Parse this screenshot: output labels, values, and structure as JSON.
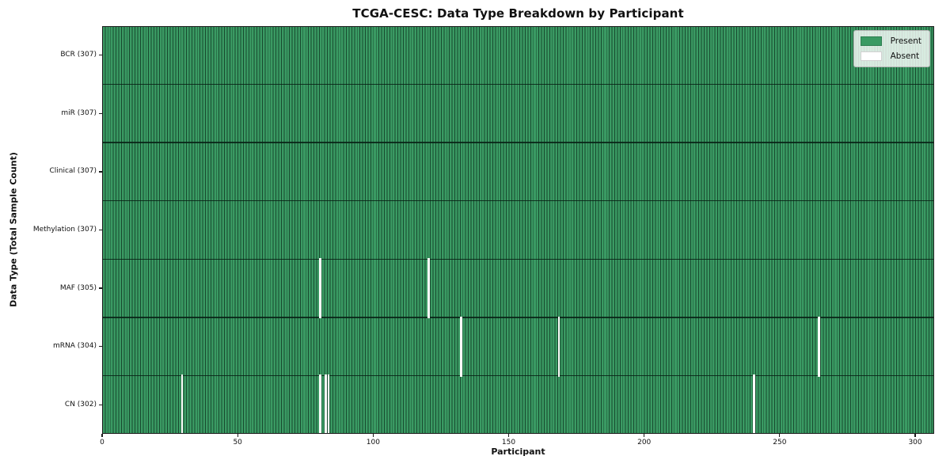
{
  "title": "TCGA-CESC: Data Type Breakdown by Participant",
  "x_axis": {
    "label": "Participant"
  },
  "y_axis": {
    "label": "Data Type (Total Sample Count)"
  },
  "colors": {
    "present": "#3a9a63",
    "absent": "#fdfdfb",
    "bar_edge": "rgba(10,42,26,0.72)",
    "row_separator": "rgba(8,32,20,0.85)",
    "spine": "#1c1c1c",
    "legend_bg": "rgba(255,255,255,0.8)",
    "legend_border": "#b5b5b5",
    "text": "#111111"
  },
  "chart_data": {
    "type": "heatmap",
    "title": "TCGA-CESC: Data Type Breakdown by Participant",
    "xlabel": "Participant",
    "ylabel": "Data Type (Total Sample Count)",
    "xlim": [
      0,
      307
    ],
    "n_participants": 307,
    "x_ticks": [
      0,
      50,
      100,
      150,
      200,
      250,
      300
    ],
    "grid": false,
    "legend_position": "upper right",
    "legend": [
      {
        "label": "Present",
        "color": "#3a9a63"
      },
      {
        "label": "Absent",
        "color": "#ffffff"
      }
    ],
    "rows": [
      {
        "data_type": "BCR",
        "label": "BCR (307)",
        "total_samples": 307,
        "absent_participants": []
      },
      {
        "data_type": "miR",
        "label": "miR (307)",
        "total_samples": 307,
        "absent_participants": []
      },
      {
        "data_type": "Clinical",
        "label": "Clinical (307)",
        "total_samples": 307,
        "absent_participants": []
      },
      {
        "data_type": "Methylation",
        "label": "Methylation (307)",
        "total_samples": 307,
        "absent_participants": []
      },
      {
        "data_type": "MAF",
        "label": "MAF (305)",
        "total_samples": 305,
        "absent_participants": [
          80,
          120
        ]
      },
      {
        "data_type": "mRNA",
        "label": "mRNA (304)",
        "total_samples": 304,
        "absent_participants": [
          132,
          168,
          264
        ]
      },
      {
        "data_type": "CN",
        "label": "CN (302)",
        "total_samples": 302,
        "absent_participants": [
          29,
          80,
          82,
          83,
          240
        ]
      }
    ]
  }
}
